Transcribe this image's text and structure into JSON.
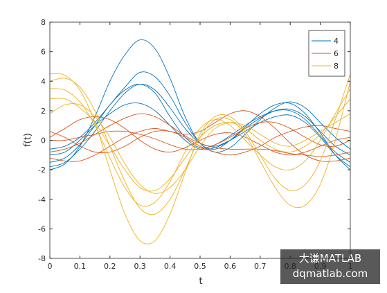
{
  "chart_data": {
    "type": "line",
    "xlabel": "t",
    "ylabel": "f(t)",
    "x": [
      0,
      0.05,
      0.1,
      0.15,
      0.2,
      0.25,
      0.3,
      0.35,
      0.4,
      0.45,
      0.5,
      0.55,
      0.6,
      0.65,
      0.7,
      0.75,
      0.8,
      0.85,
      0.9,
      0.95,
      1
    ],
    "xlim": [
      0,
      1
    ],
    "xticks": [
      0,
      0.1,
      0.2,
      0.3,
      0.4,
      0.5,
      0.6,
      0.7,
      0.8,
      0.9,
      1
    ],
    "ylim": [
      -8,
      8
    ],
    "yticks": [
      -8,
      -6,
      -4,
      -2,
      0,
      2,
      4,
      6,
      8
    ],
    "legend": "top-right",
    "series": [
      {
        "name": "4",
        "color": "#0072bd",
        "values": [
          [
            -1.5,
            -1.2,
            -0.3,
            1.0,
            2.4,
            3.4,
            3.8,
            3.2,
            1.6,
            0.2,
            -0.5,
            -0.3,
            0.3,
            1.0,
            1.6,
            2.0,
            2.0,
            1.4,
            0.3,
            -0.8,
            -1.5
          ],
          [
            -2.0,
            -1.6,
            -0.4,
            1.6,
            4.0,
            5.8,
            6.8,
            6.2,
            4.2,
            1.6,
            -0.2,
            -0.6,
            0.0,
            0.9,
            1.8,
            2.4,
            2.5,
            1.8,
            0.5,
            -1.0,
            -2.0
          ],
          [
            -1.0,
            -0.8,
            0.0,
            1.0,
            1.8,
            2.4,
            2.5,
            2.0,
            1.0,
            0.0,
            -0.6,
            -0.5,
            0.0,
            0.8,
            1.5,
            2.0,
            2.1,
            1.6,
            0.6,
            -0.4,
            -1.0
          ],
          [
            -1.8,
            -1.5,
            -0.6,
            0.6,
            2.0,
            3.2,
            3.8,
            3.4,
            2.2,
            0.8,
            -0.2,
            -0.4,
            0.0,
            0.6,
            1.2,
            1.6,
            1.7,
            1.2,
            0.2,
            -1.0,
            -1.8
          ],
          [
            -0.6,
            -0.4,
            0.2,
            1.2,
            2.4,
            3.6,
            4.6,
            4.3,
            3.0,
            1.2,
            -0.2,
            -0.8,
            -0.5,
            0.4,
            1.4,
            2.2,
            2.6,
            2.2,
            1.2,
            0.2,
            -0.6
          ]
        ]
      },
      {
        "name": "6",
        "color": "#d95319",
        "values": [
          [
            0.2,
            0.8,
            1.4,
            1.6,
            1.4,
            0.8,
            0.0,
            -0.6,
            -0.8,
            -0.5,
            0.0,
            0.4,
            0.5,
            0.2,
            -0.3,
            -0.8,
            -1.0,
            -0.8,
            -0.4,
            0.0,
            0.2
          ],
          [
            -0.8,
            -0.6,
            -0.2,
            0.4,
            1.0,
            1.5,
            1.8,
            1.6,
            1.0,
            0.3,
            -0.2,
            -0.5,
            -0.6,
            -0.6,
            -0.6,
            -0.7,
            -0.9,
            -1.0,
            -1.1,
            -1.0,
            -0.8
          ],
          [
            0.0,
            0.0,
            0.2,
            0.4,
            0.6,
            0.6,
            0.4,
            0.1,
            -0.3,
            -0.6,
            -0.6,
            -0.3,
            0.2,
            0.8,
            1.2,
            1.2,
            0.8,
            0.2,
            -0.3,
            -0.4,
            0.0
          ],
          [
            -1.2,
            -1.4,
            -1.4,
            -1.0,
            -0.4,
            0.2,
            0.6,
            0.8,
            0.6,
            0.4,
            0.6,
            1.2,
            1.8,
            2.0,
            1.6,
            0.8,
            -0.2,
            -1.0,
            -1.4,
            -1.4,
            -1.2
          ],
          [
            0.6,
            0.2,
            -0.4,
            -0.8,
            -0.8,
            -0.4,
            0.2,
            0.6,
            0.6,
            0.2,
            -0.4,
            -0.8,
            -1.0,
            -0.8,
            -0.4,
            0.2,
            0.6,
            0.9,
            1.0,
            0.8,
            0.6
          ]
        ]
      },
      {
        "name": "8",
        "color": "#edb120",
        "values": [
          [
            3.5,
            3.4,
            2.6,
            1.0,
            -1.2,
            -3.2,
            -4.4,
            -4.2,
            -2.8,
            -0.8,
            0.8,
            1.4,
            1.0,
            0.0,
            -1.0,
            -1.8,
            -2.0,
            -1.4,
            0.0,
            1.8,
            3.5
          ],
          [
            4.5,
            4.4,
            3.4,
            1.2,
            -2.0,
            -5.0,
            -6.8,
            -6.8,
            -5.0,
            -2.2,
            0.4,
            1.6,
            1.6,
            0.6,
            -1.0,
            -2.6,
            -3.4,
            -3.0,
            -1.4,
            1.4,
            4.5
          ],
          [
            2.8,
            2.8,
            2.2,
            1.2,
            -0.4,
            -2.0,
            -3.2,
            -3.4,
            -2.6,
            -1.2,
            0.2,
            1.0,
            1.2,
            0.8,
            0.0,
            -0.6,
            -0.8,
            -0.4,
            0.4,
            1.6,
            2.8
          ],
          [
            4.0,
            4.2,
            3.6,
            2.0,
            -0.4,
            -2.8,
            -4.6,
            -5.0,
            -4.0,
            -2.0,
            0.2,
            1.4,
            1.4,
            0.4,
            -1.4,
            -3.2,
            -4.4,
            -4.4,
            -3.0,
            0.0,
            4.0
          ],
          [
            1.8,
            2.4,
            2.4,
            1.6,
            0.2,
            -1.6,
            -3.0,
            -3.6,
            -3.2,
            -2.0,
            -0.4,
            0.8,
            1.2,
            1.0,
            0.4,
            -0.2,
            -0.4,
            0.0,
            0.6,
            1.2,
            1.8
          ]
        ]
      }
    ]
  },
  "watermark": {
    "line1": "大谦MATLAB",
    "line2": "dqmatlab.com"
  }
}
